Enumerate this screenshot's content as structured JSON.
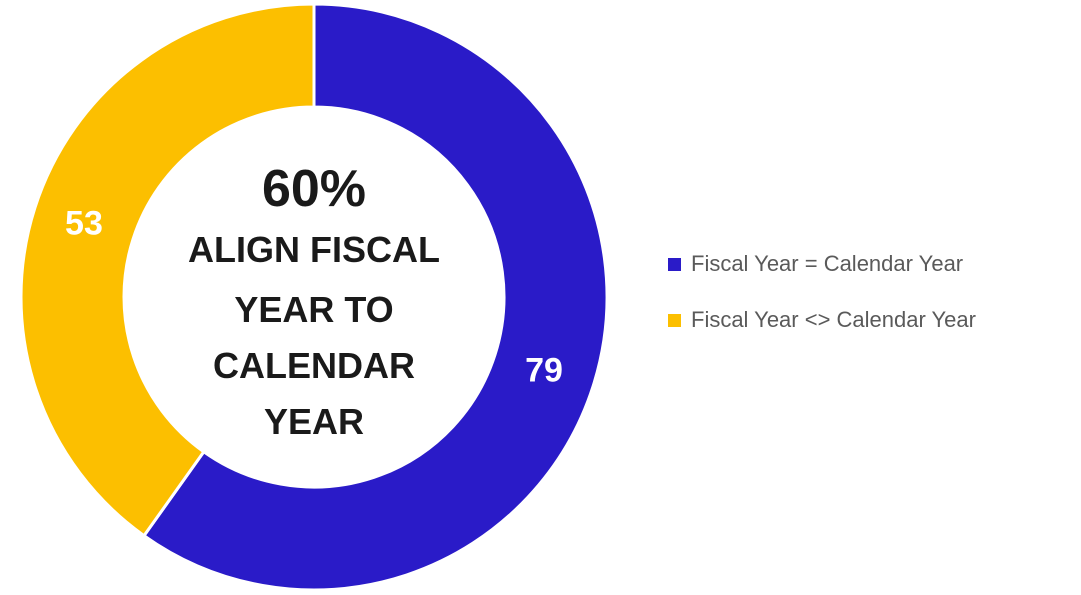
{
  "chart_data": {
    "type": "pie",
    "variant": "donut",
    "categories": [
      "Fiscal Year = Calendar Year",
      "Fiscal Year <> Calendar Year"
    ],
    "values": [
      79,
      53
    ],
    "colors": [
      "#2a1bc8",
      "#fcbf00"
    ],
    "center_text": {
      "percent": "60%",
      "lines": [
        "ALIGN FISCAL",
        "YEAR TO",
        "CALENDAR",
        "YEAR"
      ]
    },
    "legend_position": "right"
  }
}
